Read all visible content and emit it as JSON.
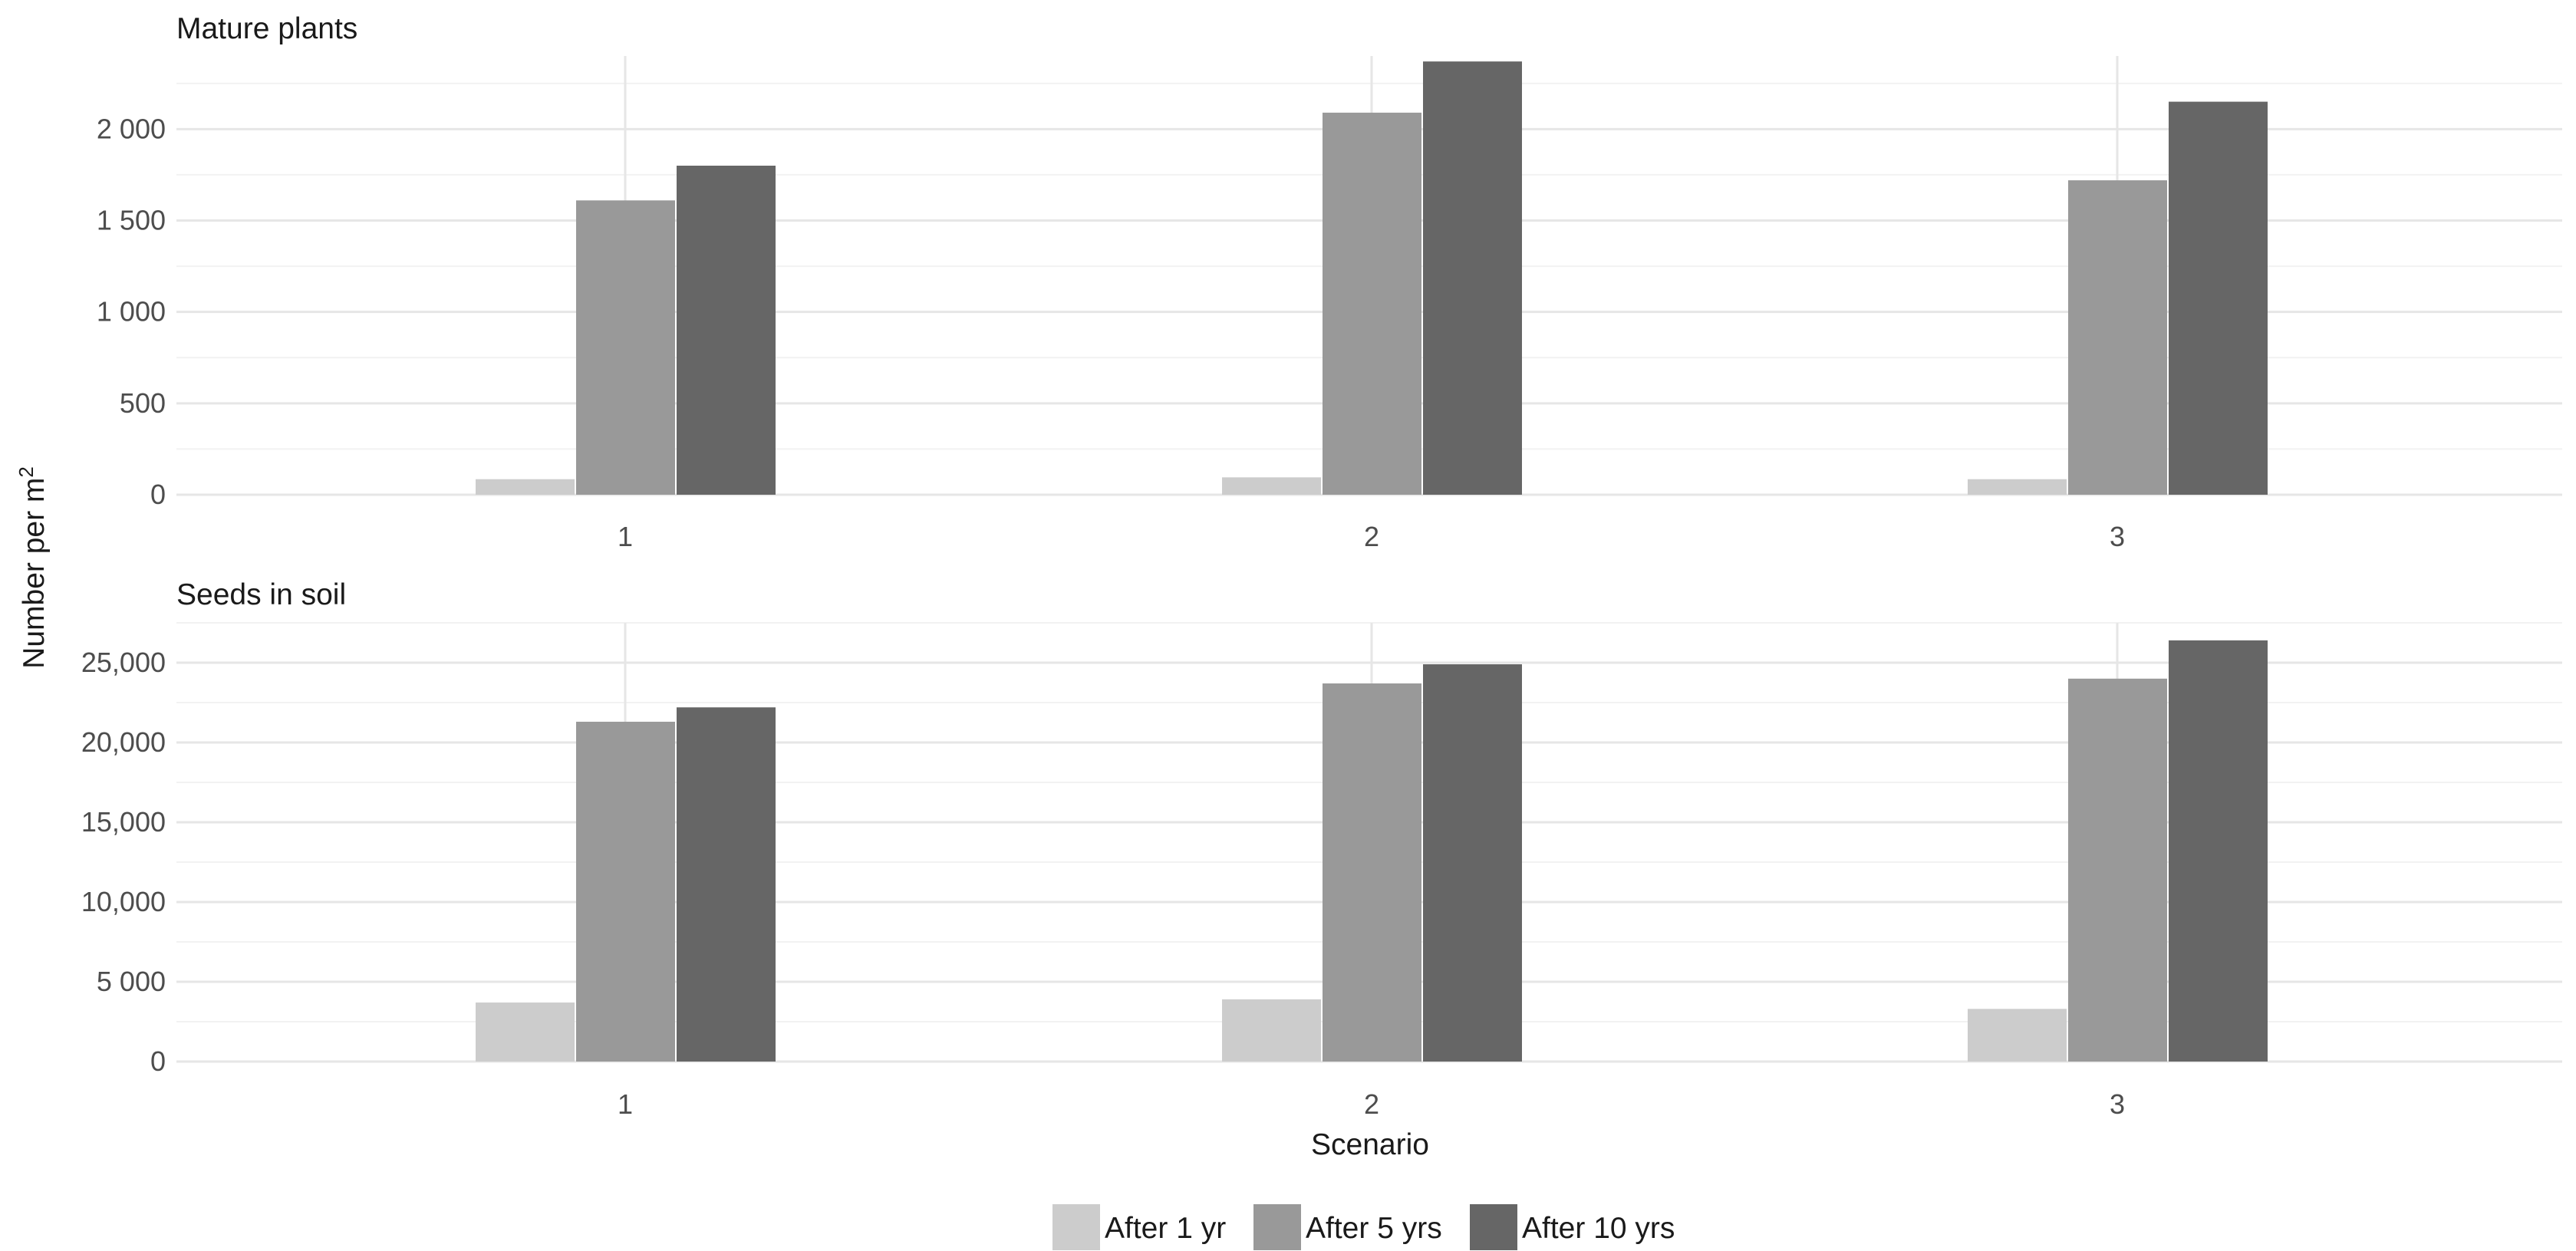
{
  "chart_data": {
    "type": "bar",
    "xlabel": "Scenario",
    "ylabel": "Number per m",
    "ylabel_superscript": "2",
    "categories": [
      "1",
      "2",
      "3"
    ],
    "legend_position": "bottom",
    "colors": {
      "After 1 yr": "#cccccc",
      "After 5 yrs": "#999999",
      "After 10 yrs": "#666666"
    },
    "legend": [
      "After 1 yr",
      "After 5 yrs",
      "After 10 yrs"
    ],
    "panels": [
      {
        "title": "Mature plants",
        "ylim": [
          0,
          2400
        ],
        "yticks": [
          0,
          500,
          1000,
          1500,
          2000
        ],
        "ytick_labels": [
          "0",
          "500",
          "1 000",
          "1 500",
          "2 000"
        ],
        "series": [
          {
            "name": "After 1 yr",
            "values": [
              85,
              95,
              85
            ]
          },
          {
            "name": "After 5 yrs",
            "values": [
              1610,
              2090,
              1720
            ]
          },
          {
            "name": "After 10 yrs",
            "values": [
              1800,
              2370,
              2150
            ]
          }
        ]
      },
      {
        "title": "Seeds in soil",
        "ylim": [
          0,
          27500
        ],
        "yticks": [
          0,
          5000,
          10000,
          15000,
          20000,
          25000
        ],
        "ytick_labels": [
          "0",
          "5 000",
          "10,000",
          "15,000",
          "20,000",
          "25,000"
        ],
        "series": [
          {
            "name": "After 1 yr",
            "values": [
              3700,
              3900,
              3300
            ]
          },
          {
            "name": "After 5 yrs",
            "values": [
              21300,
              23700,
              24000
            ]
          },
          {
            "name": "After 10 yrs",
            "values": [
              22200,
              24900,
              26400
            ]
          }
        ]
      }
    ]
  }
}
